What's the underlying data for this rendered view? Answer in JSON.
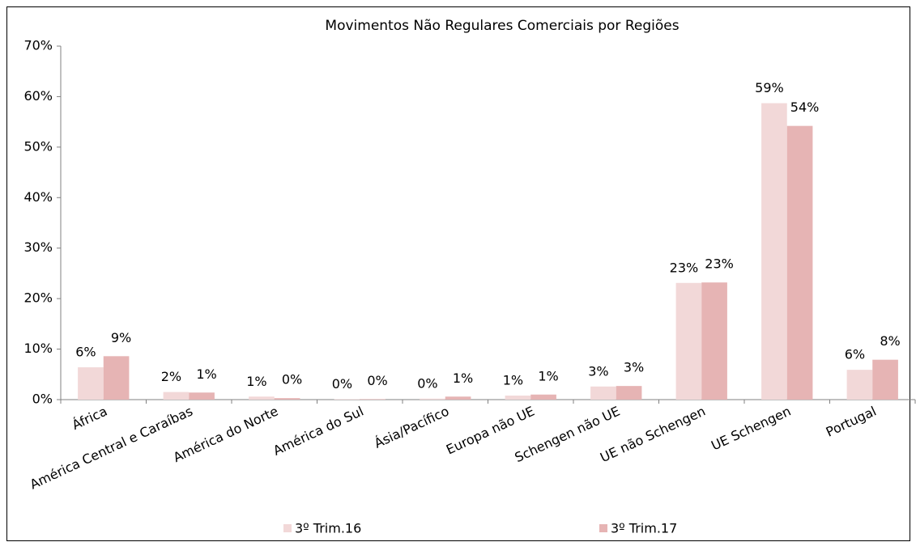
{
  "chart_data": {
    "type": "bar",
    "title": "Movimentos Não Regulares Comerciais por Regiões",
    "categories": [
      "África",
      "América Central e Caraíbas",
      "América do Norte",
      "América do Sul",
      "Ásia/Pacífico",
      "Europa não UE",
      "Schengen não UE",
      "UE não Schengen",
      "UE Schengen",
      "Portugal"
    ],
    "series": [
      {
        "name": "3º Trim.16",
        "color": "#f2d8d8",
        "values": [
          6.4,
          1.5,
          0.6,
          0.1,
          0.2,
          0.8,
          2.6,
          23.1,
          58.7,
          5.9
        ],
        "value_labels": [
          "6%",
          "2%",
          "1%",
          "0%",
          "0%",
          "1%",
          "3%",
          "23%",
          "59%",
          "6%"
        ]
      },
      {
        "name": "3º Trim.17",
        "color": "#e6b4b4",
        "values": [
          8.6,
          1.4,
          0.3,
          0.1,
          0.6,
          1.0,
          2.7,
          23.2,
          54.2,
          7.9
        ],
        "value_labels": [
          "9%",
          "1%",
          "0%",
          "0%",
          "1%",
          "1%",
          "3%",
          "23%",
          "54%",
          "8%"
        ]
      }
    ],
    "ylim": [
      0,
      70
    ],
    "yticks": [
      {
        "value": 0,
        "label": "0%"
      },
      {
        "value": 10,
        "label": "10%"
      },
      {
        "value": 20,
        "label": "20%"
      },
      {
        "value": 30,
        "label": "30%"
      },
      {
        "value": 40,
        "label": "40%"
      },
      {
        "value": 50,
        "label": "50%"
      },
      {
        "value": 60,
        "label": "60%"
      },
      {
        "value": 70,
        "label": "70%"
      }
    ],
    "grid": false
  }
}
